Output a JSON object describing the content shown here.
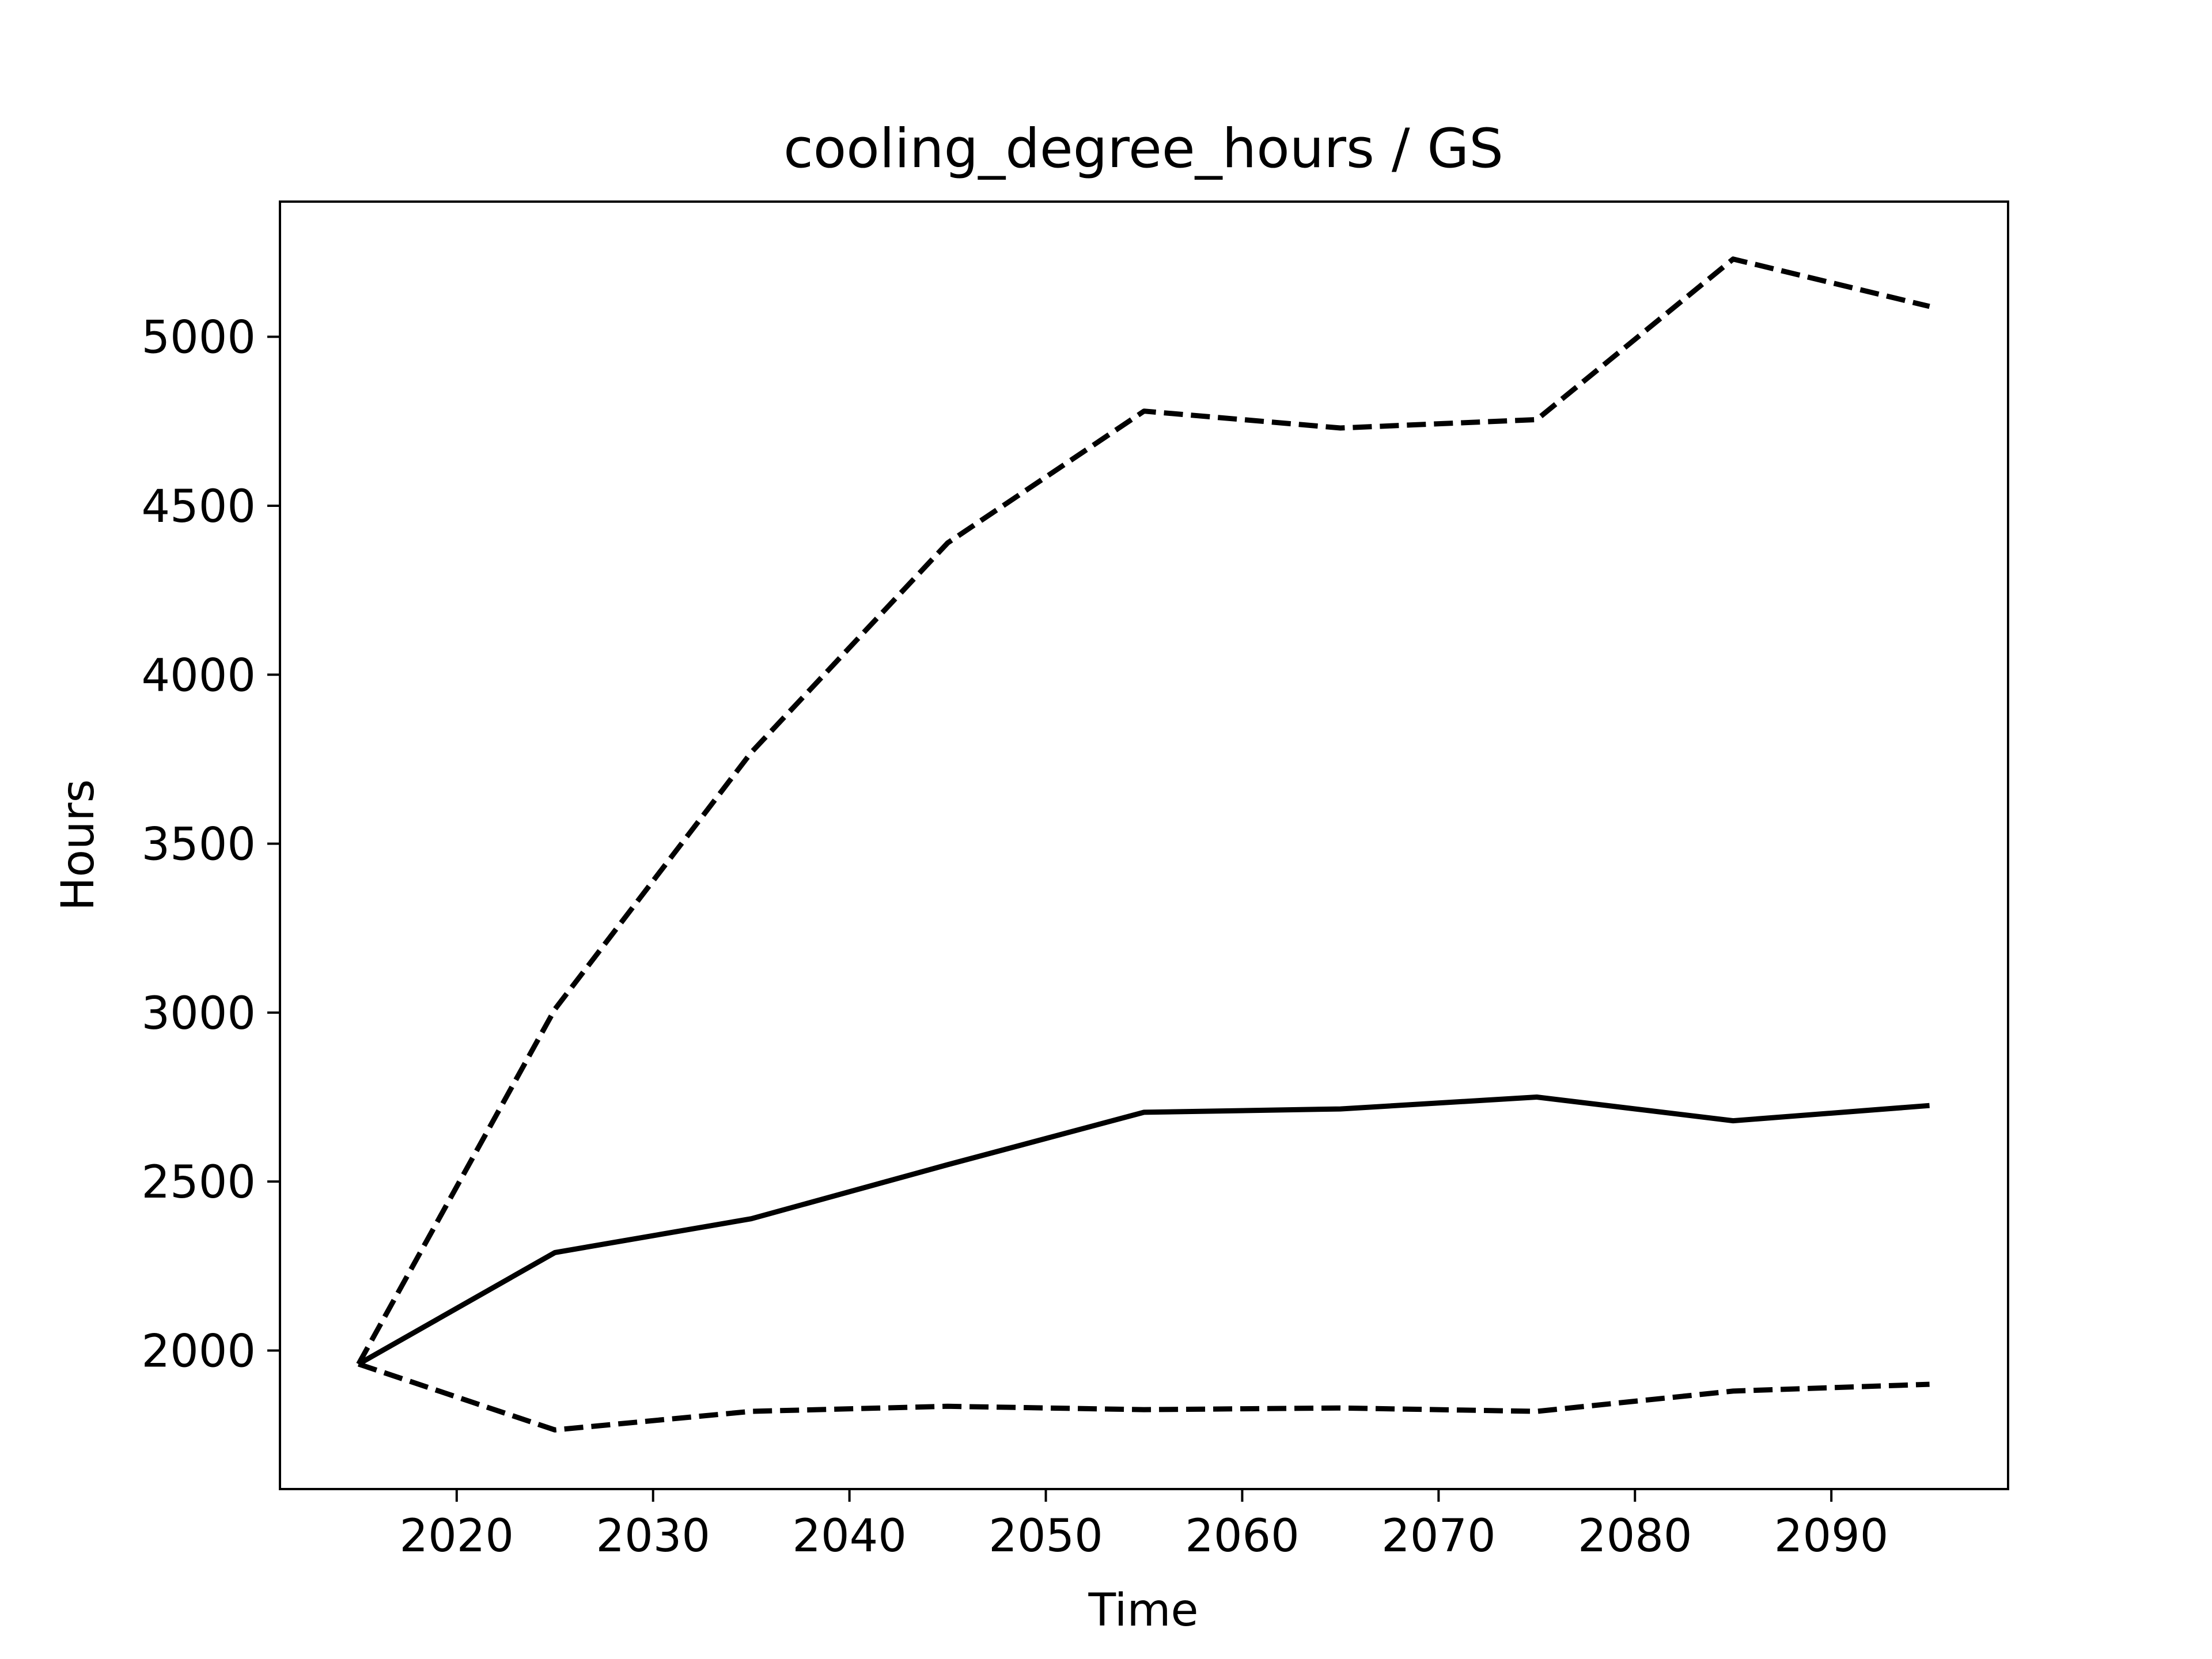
{
  "chart_data": {
    "type": "line",
    "title": "cooling_degree_hours / GS",
    "xlabel": "Time",
    "ylabel": "Hours",
    "x": [
      2015,
      2025,
      2035,
      2045,
      2055,
      2065,
      2075,
      2085,
      2095
    ],
    "xlim": [
      2011,
      2099
    ],
    "ylim": [
      1590,
      5400
    ],
    "x_ticks": [
      "2020",
      "2030",
      "2040",
      "2050",
      "2060",
      "2070",
      "2080",
      "2090"
    ],
    "y_ticks": [
      "2000",
      "2500",
      "3000",
      "3500",
      "4000",
      "4500",
      "5000"
    ],
    "grid": false,
    "legend": "none",
    "series": [
      {
        "style": "solid",
        "color": "#000000",
        "values": [
          1960,
          2290,
          2390,
          2550,
          2705,
          2715,
          2750,
          2680,
          2725
        ]
      },
      {
        "style": "dashed",
        "color": "#000000",
        "values": [
          1960,
          3010,
          3770,
          4390,
          4780,
          4730,
          4755,
          5230,
          5090
        ]
      },
      {
        "style": "dashed",
        "color": "#000000",
        "values": [
          1960,
          1765,
          1820,
          1835,
          1825,
          1830,
          1820,
          1880,
          1900
        ]
      }
    ]
  }
}
